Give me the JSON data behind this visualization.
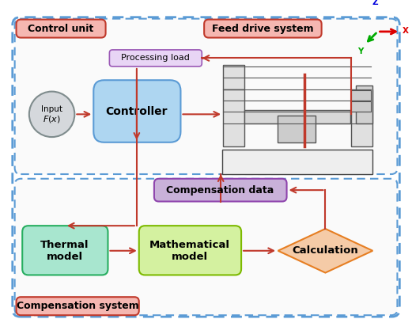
{
  "bg_color": "#ffffff",
  "outer_border_color": "#5b9bd5",
  "control_unit_label": "Control unit",
  "feed_drive_label": "Feed drive system",
  "compensation_system_label": "Compensation system",
  "processing_load_label": "Processing load",
  "controller_label": "Controller",
  "compensation_data_label": "Compensation data",
  "thermal_model_label": "Thermal\nmodel",
  "mathematical_model_label": "Mathematical\nmodel",
  "calculation_label": "Calculation",
  "arrow_color": "#c0392b",
  "control_unit_box_color": "#f5b7b1",
  "control_unit_box_edge": "#c0392b",
  "feed_drive_box_color": "#f5b7b1",
  "feed_drive_box_edge": "#c0392b",
  "processing_load_color": "#e8d5f5",
  "processing_load_edge": "#9b59b6",
  "controller_color": "#aed6f1",
  "controller_edge": "#5b9bd5",
  "input_circle_color": "#d5d8dc",
  "input_circle_edge": "#7f8c8d",
  "compensation_data_color": "#c9b1d9",
  "compensation_data_edge": "#8e44ad",
  "thermal_model_color": "#a8e6cf",
  "thermal_model_edge": "#27ae60",
  "mathematical_model_color": "#d4f1a0",
  "mathematical_model_edge": "#7dba00",
  "calculation_color": "#f5cba7",
  "calculation_edge": "#e67e22",
  "compensation_system_box_color": "#f5b7b1",
  "compensation_system_box_edge": "#c0392b"
}
